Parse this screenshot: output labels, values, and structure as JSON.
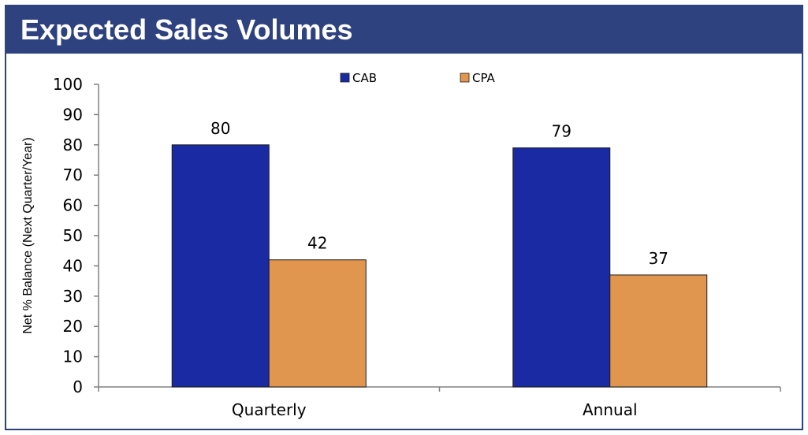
{
  "header": {
    "title": "Expected Sales Volumes"
  },
  "colors": {
    "banner": "#2e4280",
    "cab": "#1a2aa3",
    "cpa": "#e0964e"
  },
  "chart_data": {
    "type": "bar",
    "title": "",
    "xlabel": "",
    "ylabel": "Net % Balance (Next  Quarter/Year)",
    "ylim": [
      0,
      100
    ],
    "yticks": [
      0,
      10,
      20,
      30,
      40,
      50,
      60,
      70,
      80,
      90,
      100
    ],
    "categories": [
      "Quarterly",
      "Annual"
    ],
    "series": [
      {
        "name": "CAB",
        "values": [
          80,
          79
        ],
        "labels": [
          "80",
          "79"
        ],
        "color": "#1a2aa3"
      },
      {
        "name": "CPA",
        "values": [
          42,
          37
        ],
        "labels": [
          "42",
          "37"
        ],
        "color": "#e0964e"
      }
    ],
    "legend": "top-center",
    "grid": false
  }
}
